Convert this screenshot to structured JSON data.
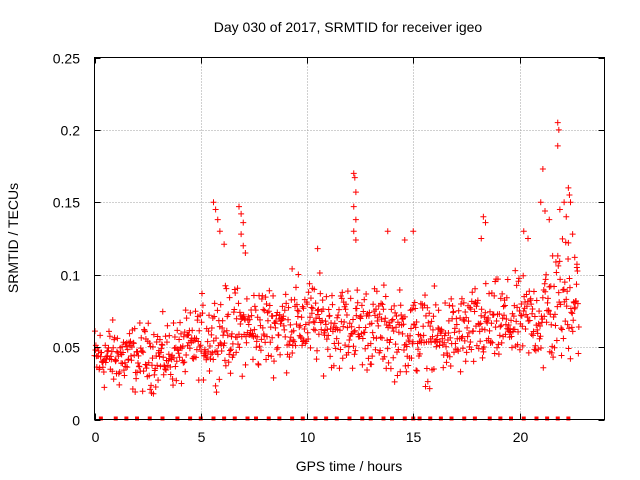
{
  "chart_data": {
    "type": "scatter",
    "title": "Day 030 of 2017, SRMTID for receiver igeo",
    "xlabel": "GPS time / hours",
    "ylabel": "SRMTID / TECUs",
    "xlim": [
      0,
      24
    ],
    "ylim": [
      0,
      0.25
    ],
    "x_ticks": [
      0,
      5,
      10,
      15,
      20
    ],
    "x_tick_labels": [
      "0",
      "5",
      "10",
      "15",
      "20"
    ],
    "y_ticks": [
      0,
      0.05,
      0.1,
      0.15,
      0.2,
      0.25
    ],
    "y_tick_labels": [
      "0",
      "0.05",
      "0.1",
      "0.15",
      "0.2",
      "0.25"
    ],
    "grid": true,
    "marker": "+",
    "color": "#ff0000",
    "trend": [
      [
        0,
        0.042
      ],
      [
        1,
        0.044
      ],
      [
        2,
        0.042
      ],
      [
        3,
        0.044
      ],
      [
        4,
        0.046
      ],
      [
        5,
        0.055
      ],
      [
        6,
        0.06
      ],
      [
        7,
        0.062
      ],
      [
        8,
        0.064
      ],
      [
        9,
        0.066
      ],
      [
        10,
        0.068
      ],
      [
        11,
        0.066
      ],
      [
        12,
        0.064
      ],
      [
        13,
        0.064
      ],
      [
        14,
        0.06
      ],
      [
        15,
        0.058
      ],
      [
        16,
        0.056
      ],
      [
        17,
        0.058
      ],
      [
        18,
        0.062
      ],
      [
        19,
        0.066
      ],
      [
        20,
        0.068
      ],
      [
        21,
        0.07
      ],
      [
        22,
        0.082
      ],
      [
        22.8,
        0.085
      ]
    ],
    "outlier_points": [
      [
        5.6,
        0.15
      ],
      [
        5.7,
        0.145
      ],
      [
        5.8,
        0.138
      ],
      [
        5.9,
        0.13
      ],
      [
        6.1,
        0.121
      ],
      [
        6.8,
        0.147
      ],
      [
        6.9,
        0.142
      ],
      [
        7.0,
        0.136
      ],
      [
        6.9,
        0.128
      ],
      [
        7.0,
        0.12
      ],
      [
        7.1,
        0.115
      ],
      [
        9.3,
        0.104
      ],
      [
        10.5,
        0.118
      ],
      [
        12.2,
        0.17
      ],
      [
        12.25,
        0.167
      ],
      [
        12.3,
        0.157
      ],
      [
        12.2,
        0.147
      ],
      [
        12.3,
        0.138
      ],
      [
        12.2,
        0.13
      ],
      [
        12.3,
        0.124
      ],
      [
        13.8,
        0.13
      ],
      [
        14.6,
        0.124
      ],
      [
        15.0,
        0.13
      ],
      [
        18.3,
        0.14
      ],
      [
        18.4,
        0.136
      ],
      [
        18.2,
        0.125
      ],
      [
        20.2,
        0.13
      ],
      [
        20.4,
        0.125
      ],
      [
        21.1,
        0.173
      ],
      [
        21.0,
        0.15
      ],
      [
        21.2,
        0.144
      ],
      [
        21.4,
        0.138
      ],
      [
        21.8,
        0.205
      ],
      [
        21.85,
        0.2
      ],
      [
        21.8,
        0.189
      ],
      [
        21.9,
        0.145
      ],
      [
        22.1,
        0.15
      ],
      [
        22.3,
        0.16
      ],
      [
        22.35,
        0.155
      ],
      [
        22.4,
        0.15
      ],
      [
        22.2,
        0.14
      ],
      [
        22.5,
        0.128
      ],
      [
        22.3,
        0.122
      ],
      [
        22.6,
        0.112
      ],
      [
        22.7,
        0.105
      ]
    ],
    "zero_points_x": [
      0.3,
      1.0,
      1.5,
      2.0,
      2.6,
      3.2,
      3.9,
      4.5,
      5.0,
      5.6,
      6.1,
      6.6,
      7.2,
      7.6,
      8.2,
      8.7,
      9.3,
      9.8,
      10.4,
      10.9,
      11.4,
      12.0,
      12.6,
      13.0,
      13.6,
      14.0,
      14.6,
      15.0,
      15.3,
      15.8,
      16.3,
      16.8,
      17.4,
      17.9,
      18.6,
      19.1,
      19.6,
      20.2,
      20.8,
      21.3,
      21.8,
      22.3
    ]
  }
}
